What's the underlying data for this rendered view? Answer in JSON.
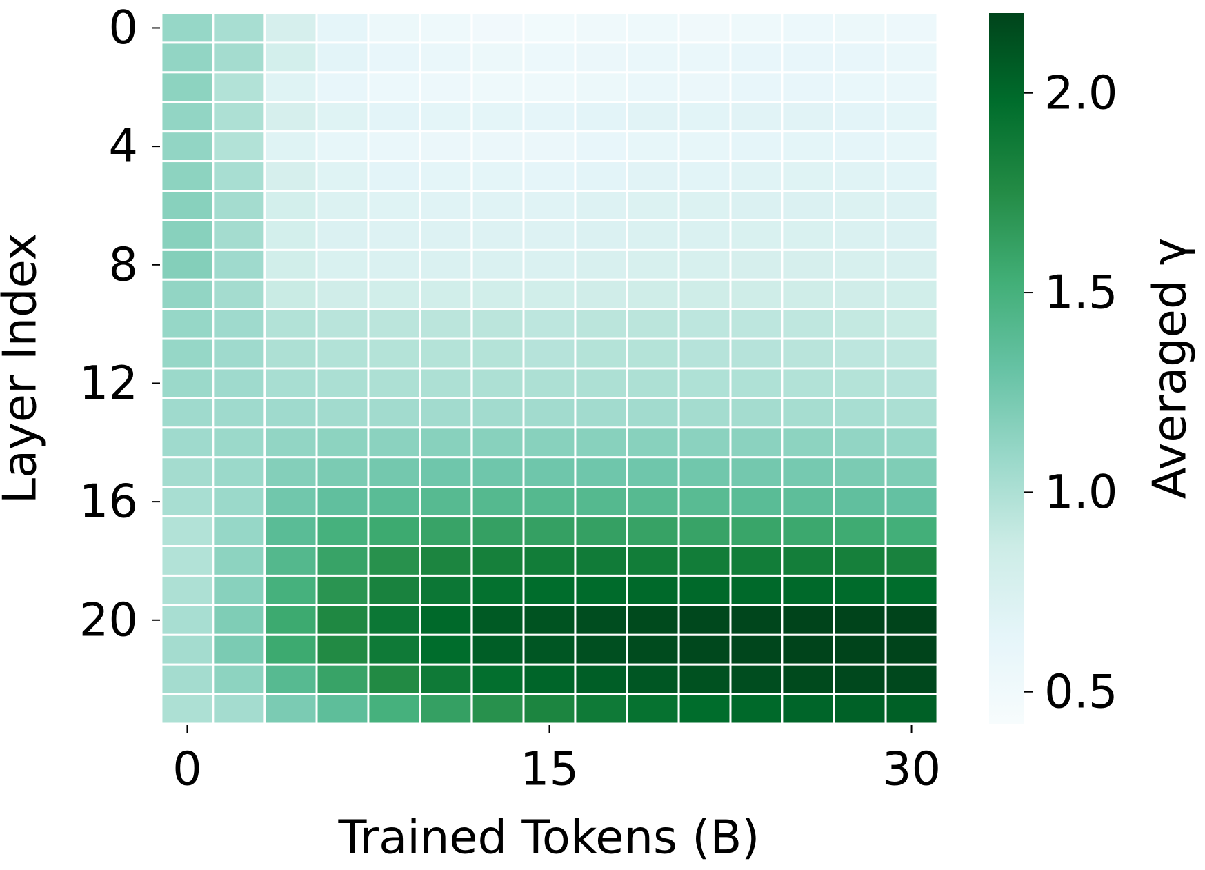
{
  "chart_data": {
    "type": "heatmap",
    "x_label": "Trained Tokens (B)",
    "y_label": "Layer Index",
    "colorbar_label": "Averaged γ",
    "x": [
      0,
      2.14,
      4.29,
      6.43,
      8.57,
      10.71,
      12.86,
      15,
      17.14,
      19.29,
      21.43,
      23.57,
      25.71,
      27.86,
      30
    ],
    "y": [
      0,
      1,
      2,
      3,
      4,
      5,
      6,
      7,
      8,
      9,
      10,
      11,
      12,
      13,
      14,
      15,
      16,
      17,
      18,
      19,
      20,
      21,
      22,
      23
    ],
    "xlim": [
      -1.07,
      31.07
    ],
    "xticks": [
      0,
      15,
      30
    ],
    "ylim": [
      -0.5,
      23.5
    ],
    "yticks": [
      0,
      4,
      8,
      12,
      16,
      20
    ],
    "clim": [
      0.42,
      2.2
    ],
    "cticks": [
      0.5,
      {
        "value": 1,
        "label": "1.0"
      },
      1.5,
      {
        "value": 2,
        "label": "2.0"
      }
    ],
    "colormap": [
      "#f7fcfd",
      "#e5f5f9",
      "#ccece6",
      "#99d8c9",
      "#66c2a4",
      "#41ae76",
      "#238b45",
      "#006d2c",
      "#00441b"
    ],
    "z": [
      [
        1.1,
        1.02,
        0.78,
        0.64,
        0.56,
        0.53,
        0.5,
        0.49,
        0.52,
        0.53,
        0.51,
        0.53,
        0.55,
        0.56,
        0.54
      ],
      [
        1.12,
        1.04,
        0.8,
        0.66,
        0.6,
        0.58,
        0.56,
        0.55,
        0.57,
        0.58,
        0.58,
        0.6,
        0.61,
        0.6,
        0.58
      ],
      [
        1.14,
        0.98,
        0.7,
        0.6,
        0.55,
        0.54,
        0.53,
        0.53,
        0.56,
        0.58,
        0.57,
        0.6,
        0.6,
        0.59,
        0.58
      ],
      [
        1.12,
        1.0,
        0.78,
        0.7,
        0.66,
        0.65,
        0.65,
        0.64,
        0.66,
        0.68,
        0.67,
        0.68,
        0.68,
        0.66,
        0.65
      ],
      [
        1.12,
        0.98,
        0.7,
        0.62,
        0.58,
        0.57,
        0.57,
        0.57,
        0.6,
        0.62,
        0.62,
        0.64,
        0.65,
        0.64,
        0.62
      ],
      [
        1.14,
        1.02,
        0.78,
        0.7,
        0.66,
        0.65,
        0.65,
        0.64,
        0.66,
        0.68,
        0.67,
        0.69,
        0.7,
        0.69,
        0.67
      ],
      [
        1.16,
        1.04,
        0.8,
        0.72,
        0.7,
        0.69,
        0.69,
        0.69,
        0.71,
        0.72,
        0.72,
        0.73,
        0.73,
        0.72,
        0.71
      ],
      [
        1.16,
        1.04,
        0.8,
        0.73,
        0.71,
        0.71,
        0.71,
        0.71,
        0.73,
        0.74,
        0.74,
        0.75,
        0.75,
        0.74,
        0.73
      ],
      [
        1.18,
        1.06,
        0.82,
        0.75,
        0.74,
        0.74,
        0.74,
        0.74,
        0.76,
        0.77,
        0.77,
        0.78,
        0.78,
        0.77,
        0.76
      ],
      [
        1.12,
        1.04,
        0.88,
        0.83,
        0.82,
        0.82,
        0.82,
        0.82,
        0.83,
        0.84,
        0.84,
        0.84,
        0.84,
        0.83,
        0.82
      ],
      [
        1.1,
        1.06,
        0.98,
        0.95,
        0.94,
        0.94,
        0.94,
        0.93,
        0.94,
        0.94,
        0.93,
        0.93,
        0.92,
        0.9,
        0.88
      ],
      [
        1.1,
        1.06,
        1.0,
        0.98,
        0.97,
        0.97,
        0.97,
        0.96,
        0.97,
        0.97,
        0.96,
        0.96,
        0.95,
        0.93,
        0.92
      ],
      [
        1.08,
        1.06,
        1.02,
        1.01,
        1.0,
        1.0,
        1.0,
        1.0,
        1.0,
        1.0,
        0.99,
        0.99,
        0.98,
        0.97,
        0.96
      ],
      [
        1.06,
        1.06,
        1.06,
        1.05,
        1.05,
        1.05,
        1.05,
        1.05,
        1.05,
        1.05,
        1.04,
        1.04,
        1.03,
        1.02,
        1.01
      ],
      [
        1.06,
        1.08,
        1.12,
        1.14,
        1.15,
        1.16,
        1.16,
        1.16,
        1.16,
        1.16,
        1.15,
        1.15,
        1.14,
        1.12,
        1.1
      ],
      [
        1.04,
        1.08,
        1.18,
        1.22,
        1.25,
        1.27,
        1.27,
        1.27,
        1.27,
        1.27,
        1.26,
        1.25,
        1.24,
        1.22,
        1.2
      ],
      [
        1.02,
        1.08,
        1.26,
        1.34,
        1.38,
        1.4,
        1.41,
        1.41,
        1.41,
        1.4,
        1.39,
        1.38,
        1.36,
        1.34,
        1.32
      ],
      [
        0.98,
        1.1,
        1.38,
        1.5,
        1.56,
        1.6,
        1.62,
        1.62,
        1.62,
        1.61,
        1.6,
        1.59,
        1.57,
        1.55,
        1.52
      ],
      [
        0.98,
        1.14,
        1.42,
        1.6,
        1.72,
        1.8,
        1.84,
        1.86,
        1.87,
        1.86,
        1.86,
        1.86,
        1.85,
        1.84,
        1.82
      ],
      [
        1.0,
        1.16,
        1.5,
        1.7,
        1.82,
        1.9,
        1.95,
        1.98,
        1.99,
        2.0,
        2.0,
        2.0,
        2.0,
        1.99,
        1.98
      ],
      [
        1.02,
        1.2,
        1.56,
        1.78,
        1.9,
        2.0,
        2.08,
        2.12,
        2.15,
        2.17,
        2.18,
        2.19,
        2.2,
        2.2,
        2.2
      ],
      [
        1.04,
        1.22,
        1.56,
        1.76,
        1.88,
        1.98,
        2.06,
        2.1,
        2.14,
        2.16,
        2.18,
        2.19,
        2.2,
        2.2,
        2.2
      ],
      [
        1.04,
        1.14,
        1.4,
        1.6,
        1.76,
        1.88,
        1.96,
        2.02,
        2.06,
        2.1,
        2.13,
        2.15,
        2.17,
        2.18,
        2.18
      ],
      [
        1.0,
        1.04,
        1.22,
        1.36,
        1.5,
        1.62,
        1.72,
        1.8,
        1.88,
        1.94,
        1.98,
        2.0,
        2.02,
        2.04,
        2.05
      ]
    ]
  }
}
